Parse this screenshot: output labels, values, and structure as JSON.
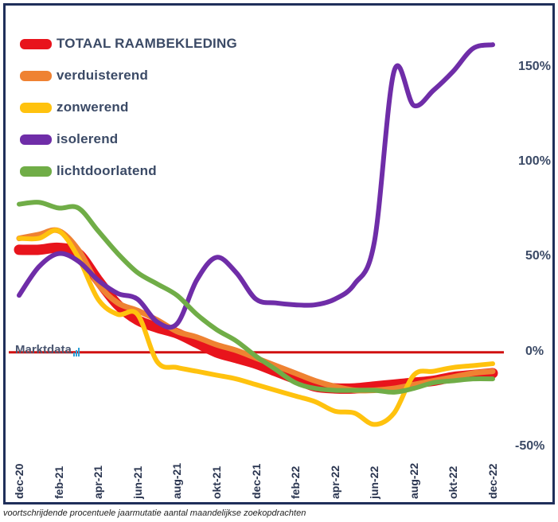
{
  "chart_data": {
    "type": "line",
    "caption": "voortschrijdende procentuele jaarmutatie aantal maandelijkse zoekopdrachten",
    "watermark": "Marktdata",
    "x": [
      "dec-20",
      "jan-21",
      "feb-21",
      "mrt-21",
      "apr-21",
      "mei-21",
      "jun-21",
      "jul-21",
      "aug-21",
      "sep-21",
      "okt-21",
      "nov-21",
      "dec-21",
      "jan-22",
      "feb-22",
      "mrt-22",
      "apr-22",
      "mei-22",
      "jun-22",
      "jul-22",
      "aug-22",
      "sep-22",
      "okt-22",
      "nov-22",
      "dec-22"
    ],
    "x_tick_labels": [
      "dec-20",
      "feb-21",
      "apr-21",
      "jun-21",
      "aug-21",
      "okt-21",
      "dec-21",
      "feb-22",
      "apr-22",
      "jun-22",
      "aug-22",
      "okt-22",
      "dec-22"
    ],
    "y_tick_labels": [
      "150%",
      "100%",
      "50%",
      "0%",
      "-50%"
    ],
    "ylim": [
      -55,
      165
    ],
    "yticks": [
      150,
      100,
      50,
      0,
      -50
    ],
    "zero_line_color": "#d01010",
    "series": [
      {
        "name": "TOTAAL RAAMBEKLEDING",
        "color": "#e8141c",
        "width": 13,
        "values": [
          54,
          54,
          55,
          52,
          38,
          25,
          17,
          13,
          10,
          5,
          0,
          -3,
          -6,
          -10,
          -14,
          -18,
          -19,
          -19,
          -18,
          -17,
          -16,
          -15,
          -13,
          -12,
          -11
        ]
      },
      {
        "name": "verduisterend",
        "color": "#ef8232",
        "width": 7,
        "values": [
          60,
          62,
          64,
          54,
          36,
          26,
          22,
          17,
          11,
          8,
          4,
          1,
          -3,
          -7,
          -11,
          -15,
          -18,
          -20,
          -20,
          -19,
          -17,
          -15,
          -13,
          -11,
          -10
        ]
      },
      {
        "name": "zonwerend",
        "color": "#ffc20e",
        "width": 6,
        "values": [
          60,
          60,
          64,
          50,
          28,
          20,
          20,
          -5,
          -8,
          -10,
          -12,
          -14,
          -17,
          -20,
          -23,
          -26,
          -31,
          -32,
          -38,
          -32,
          -12,
          -10,
          -8,
          -7,
          -6
        ]
      },
      {
        "name": "isolerend",
        "color": "#6f2da8",
        "width": 6,
        "values": [
          30,
          45,
          52,
          48,
          38,
          31,
          28,
          16,
          15,
          38,
          50,
          42,
          28,
          26,
          25,
          25,
          28,
          36,
          58,
          148,
          130,
          138,
          148,
          160,
          162
        ]
      },
      {
        "name": "lichtdoorlatend",
        "color": "#70ad47",
        "width": 6,
        "values": [
          78,
          79,
          76,
          76,
          64,
          52,
          42,
          36,
          30,
          20,
          12,
          6,
          -2,
          -9,
          -16,
          -19,
          -20,
          -20,
          -20,
          -21,
          -19,
          -16,
          -15,
          -14,
          -14
        ]
      }
    ],
    "legend_position": "top-left"
  }
}
